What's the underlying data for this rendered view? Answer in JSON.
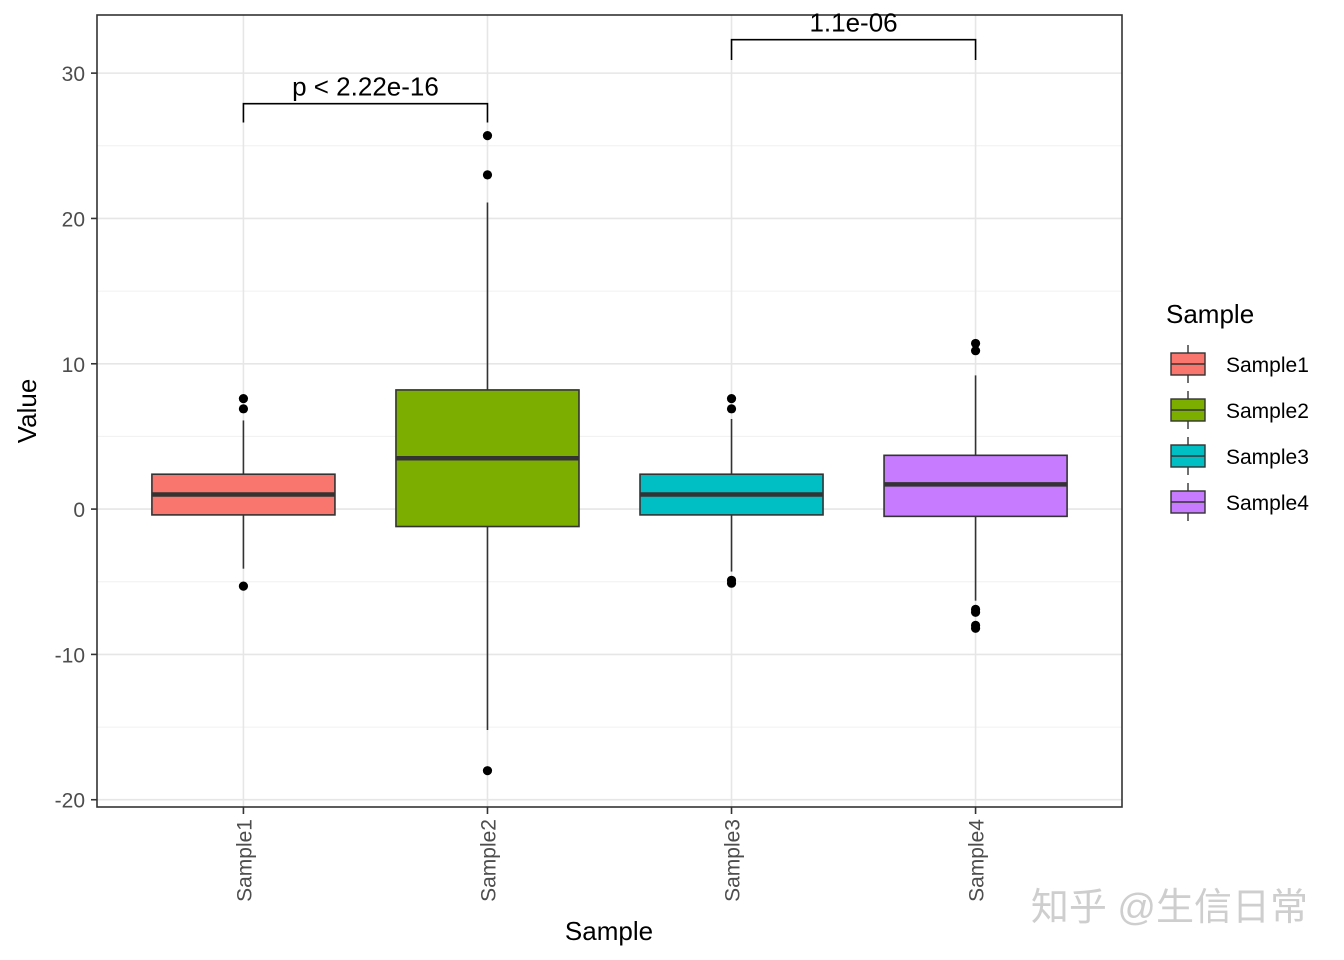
{
  "chart_data": {
    "type": "boxplot",
    "title": "",
    "xlabel": "Sample",
    "ylabel": "Value",
    "ylim": [
      -20.5,
      34
    ],
    "yticks": [
      -20,
      -10,
      0,
      10,
      20,
      30
    ],
    "ytick_labels": [
      "-20",
      "-10",
      "0",
      "10",
      "20",
      "30"
    ],
    "grid": true,
    "categories": [
      "Sample1",
      "Sample2",
      "Sample3",
      "Sample4"
    ],
    "boxes": [
      {
        "category": "Sample1",
        "q1": -0.4,
        "median": 1.0,
        "q3": 2.4,
        "whisker_low": -4.1,
        "whisker_high": 6.1,
        "outliers": [
          7.6,
          6.9,
          -5.3
        ],
        "color": "#F8766D"
      },
      {
        "category": "Sample2",
        "q1": -1.2,
        "median": 3.5,
        "q3": 8.2,
        "whisker_low": -15.2,
        "whisker_high": 21.1,
        "outliers": [
          25.7,
          23.0,
          -18.0
        ],
        "color": "#7CAE00"
      },
      {
        "category": "Sample3",
        "q1": -0.4,
        "median": 1.0,
        "q3": 2.4,
        "whisker_low": -4.3,
        "whisker_high": 6.2,
        "outliers": [
          7.6,
          6.9,
          -4.9,
          -5.1
        ],
        "color": "#00BFC4"
      },
      {
        "category": "Sample4",
        "q1": -0.5,
        "median": 1.7,
        "q3": 3.7,
        "whisker_low": -6.3,
        "whisker_high": 9.2,
        "outliers": [
          11.4,
          10.9,
          -6.9,
          -7.1,
          -8.0,
          -8.2
        ],
        "color": "#C77CFF"
      }
    ],
    "comparisons": [
      {
        "from": "Sample1",
        "to": "Sample2",
        "y": 27.9,
        "tip": 26.6,
        "label": "p < 2.22e-16"
      },
      {
        "from": "Sample3",
        "to": "Sample4",
        "y": 32.3,
        "tip": 30.9,
        "label": "1.1e-06"
      }
    ],
    "legend": {
      "title": "Sample",
      "position": "right",
      "entries": [
        "Sample1",
        "Sample2",
        "Sample3",
        "Sample4"
      ]
    }
  },
  "watermark": "知乎 @生信日常"
}
